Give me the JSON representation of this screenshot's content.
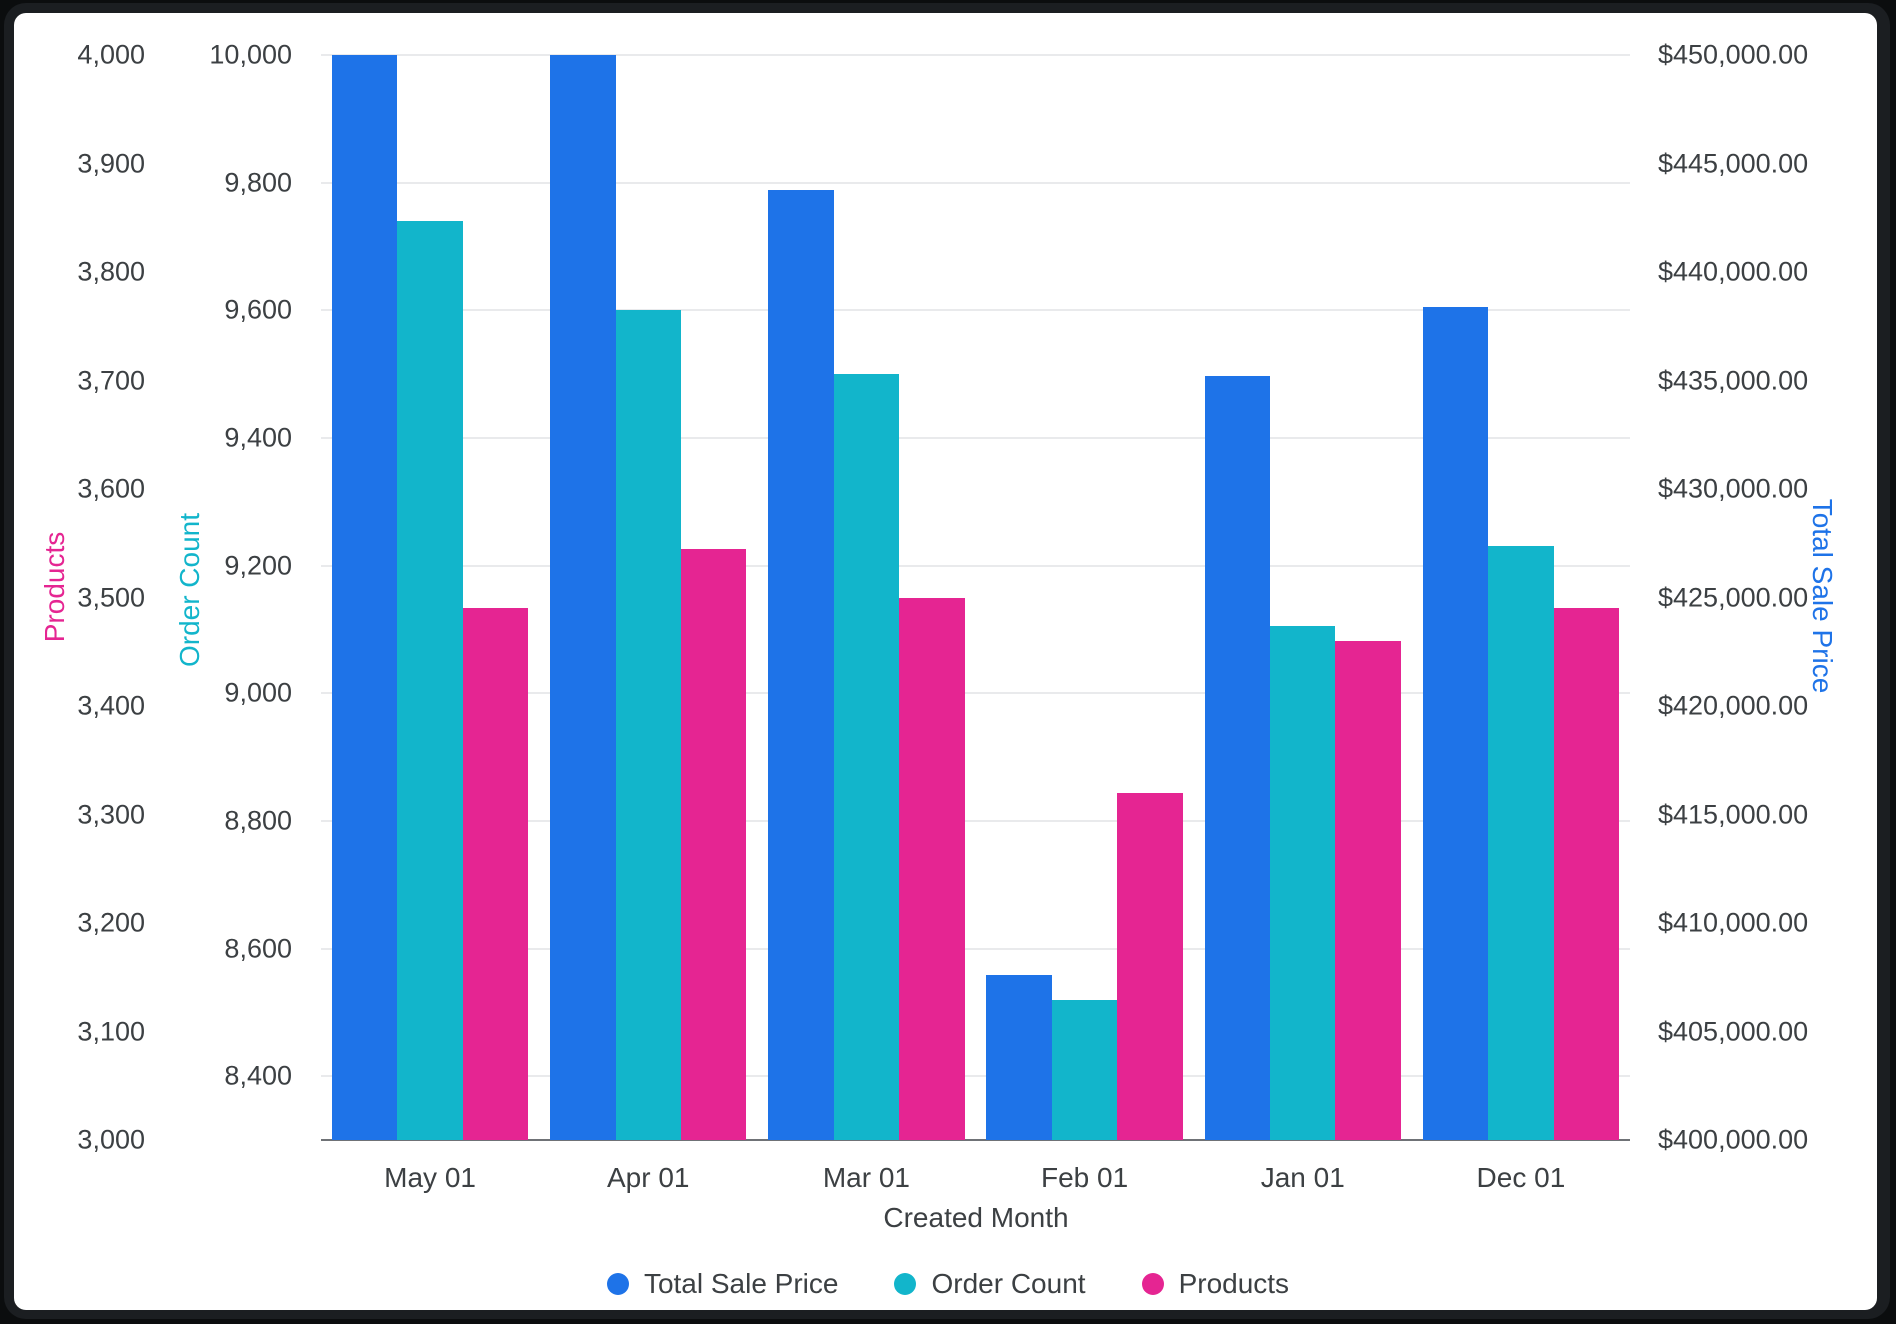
{
  "chart_data": {
    "type": "bar",
    "title": "",
    "x_axis_title": "Created Month",
    "categories": [
      "May 01",
      "Apr 01",
      "Mar 01",
      "Feb 01",
      "Jan 01",
      "Dec 01"
    ],
    "series": [
      {
        "name": "Total Sale Price",
        "axis": "price",
        "color": "#1E73E8",
        "values": [
          450000,
          450000,
          443800,
          407600,
          435200,
          438400
        ]
      },
      {
        "name": "Order Count",
        "axis": "order",
        "color": "#12B5CB",
        "values": [
          9740,
          9600,
          9500,
          8520,
          9105,
          9230
        ]
      },
      {
        "name": "Products",
        "axis": "products",
        "color": "#E52592",
        "values": [
          3490,
          3545,
          3500,
          3320,
          3460,
          3490
        ]
      }
    ],
    "axes": {
      "products": {
        "title": "Products",
        "color": "#E52592",
        "min": 3000,
        "max": 4000,
        "ticks": [
          {
            "label": "4,000",
            "value": 4000
          },
          {
            "label": "3,900",
            "value": 3900
          },
          {
            "label": "3,800",
            "value": 3800
          },
          {
            "label": "3,700",
            "value": 3700
          },
          {
            "label": "3,600",
            "value": 3600
          },
          {
            "label": "3,500",
            "value": 3500
          },
          {
            "label": "3,400",
            "value": 3400
          },
          {
            "label": "3,300",
            "value": 3300
          },
          {
            "label": "3,200",
            "value": 3200
          },
          {
            "label": "3,100",
            "value": 3100
          },
          {
            "label": "3,000",
            "value": 3000
          }
        ]
      },
      "order": {
        "title": "Order Count",
        "color": "#12B5CB",
        "min": 8300,
        "max": 10000,
        "gridlines": true,
        "ticks": [
          {
            "label": "10,000",
            "value": 10000
          },
          {
            "label": "9,800",
            "value": 9800
          },
          {
            "label": "9,600",
            "value": 9600
          },
          {
            "label": "9,400",
            "value": 9400
          },
          {
            "label": "9,200",
            "value": 9200
          },
          {
            "label": "9,000",
            "value": 9000
          },
          {
            "label": "8,800",
            "value": 8800
          },
          {
            "label": "8,600",
            "value": 8600
          },
          {
            "label": "8,400",
            "value": 8400
          }
        ]
      },
      "price": {
        "title": "Total Sale Price",
        "color": "#1E73E8",
        "min": 400000,
        "max": 450000,
        "ticks": [
          {
            "label": "$450,000.00",
            "value": 450000
          },
          {
            "label": "$445,000.00",
            "value": 445000
          },
          {
            "label": "$440,000.00",
            "value": 440000
          },
          {
            "label": "$435,000.00",
            "value": 435000
          },
          {
            "label": "$430,000.00",
            "value": 430000
          },
          {
            "label": "$425,000.00",
            "value": 425000
          },
          {
            "label": "$420,000.00",
            "value": 420000
          },
          {
            "label": "$415,000.00",
            "value": 415000
          },
          {
            "label": "$410,000.00",
            "value": 410000
          },
          {
            "label": "$405,000.00",
            "value": 405000
          },
          {
            "label": "$400,000.00",
            "value": 400000
          }
        ]
      },
      "legend_position": "bottom",
      "grid": "order-axis-only"
    },
    "legend": [
      "Total Sale Price",
      "Order Count",
      "Products"
    ],
    "colors": {
      "grid": "#E9EAEC",
      "axis_line": "#6F7276",
      "tick_text": "#3C4043"
    }
  }
}
